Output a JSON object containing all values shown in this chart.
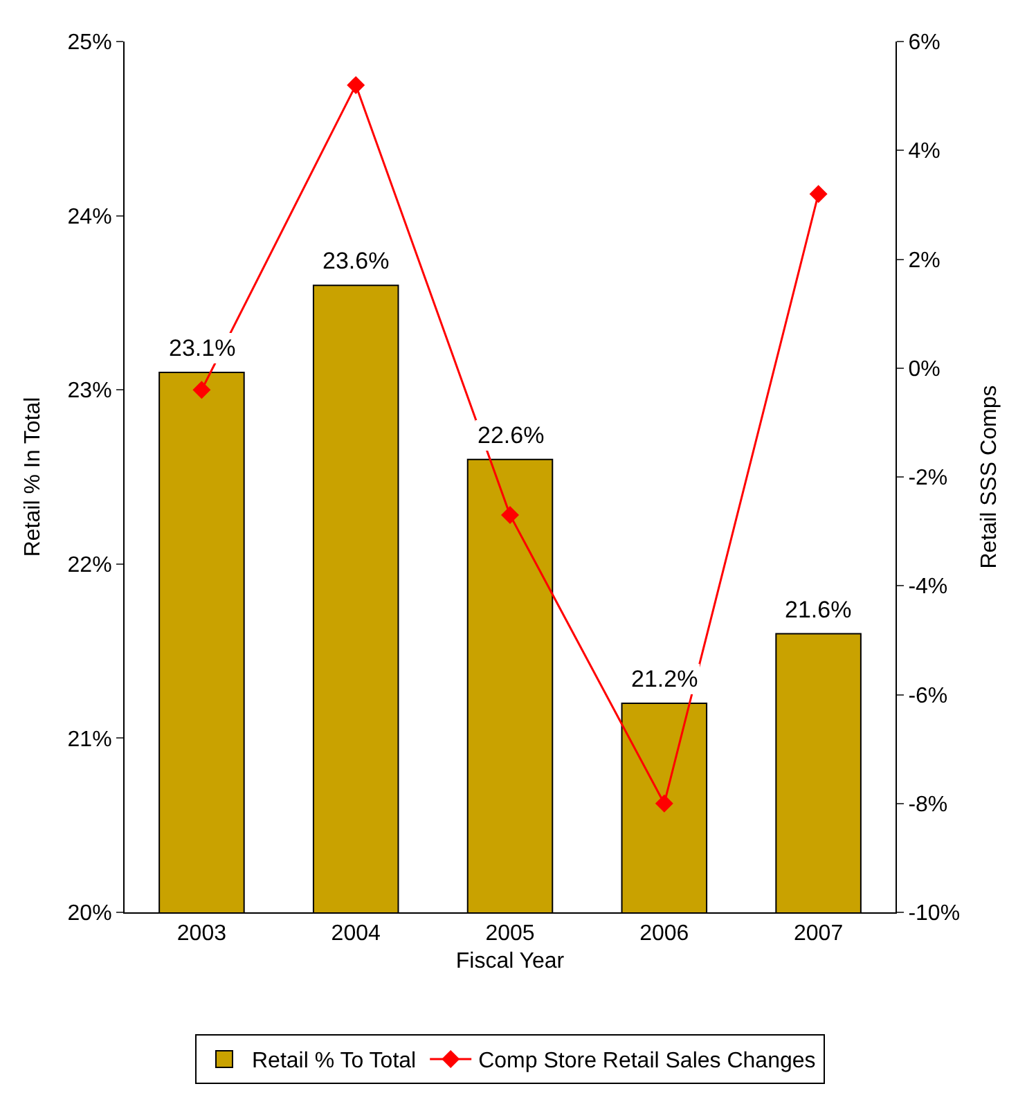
{
  "chart_data": {
    "type": "bar",
    "xlabel": "Fiscal Year",
    "ylabel": "Retail % In Total",
    "y2label": "Retail SSS Comps",
    "categories": [
      "2003",
      "2004",
      "2005",
      "2006",
      "2007"
    ],
    "series": [
      {
        "name": "Retail % To Total",
        "color": "#c9a200",
        "values": [
          23.1,
          23.6,
          22.6,
          21.2,
          21.6
        ],
        "value_labels": [
          "23.1%",
          "23.6%",
          "22.6%",
          "21.2%",
          "21.6%"
        ]
      },
      {
        "name": "Comp Store Retail Sales Changes",
        "type": "line",
        "axis": "y2",
        "color": "#ff0000",
        "marker": "diamond",
        "values": [
          -0.4,
          5.2,
          -2.7,
          -8.0,
          3.2
        ]
      }
    ],
    "ylim": [
      20,
      25
    ],
    "yticks": [
      {
        "value": 20,
        "label": "20%"
      },
      {
        "value": 21,
        "label": "21%"
      },
      {
        "value": 22,
        "label": "22%"
      },
      {
        "value": 23,
        "label": "23%"
      },
      {
        "value": 24,
        "label": "24%"
      },
      {
        "value": 25,
        "label": "25%"
      }
    ],
    "y2lim": [
      -10,
      6
    ],
    "y2ticks": [
      {
        "value": -10,
        "label": "-10%"
      },
      {
        "value": -8,
        "label": "-8%"
      },
      {
        "value": -6,
        "label": "-6%"
      },
      {
        "value": -4,
        "label": "-4%"
      },
      {
        "value": -2,
        "label": "-2%"
      },
      {
        "value": 0,
        "label": "0%"
      },
      {
        "value": 2,
        "label": "2%"
      },
      {
        "value": 4,
        "label": "4%"
      },
      {
        "value": 6,
        "label": "6%"
      }
    ],
    "legend": "bottom"
  }
}
